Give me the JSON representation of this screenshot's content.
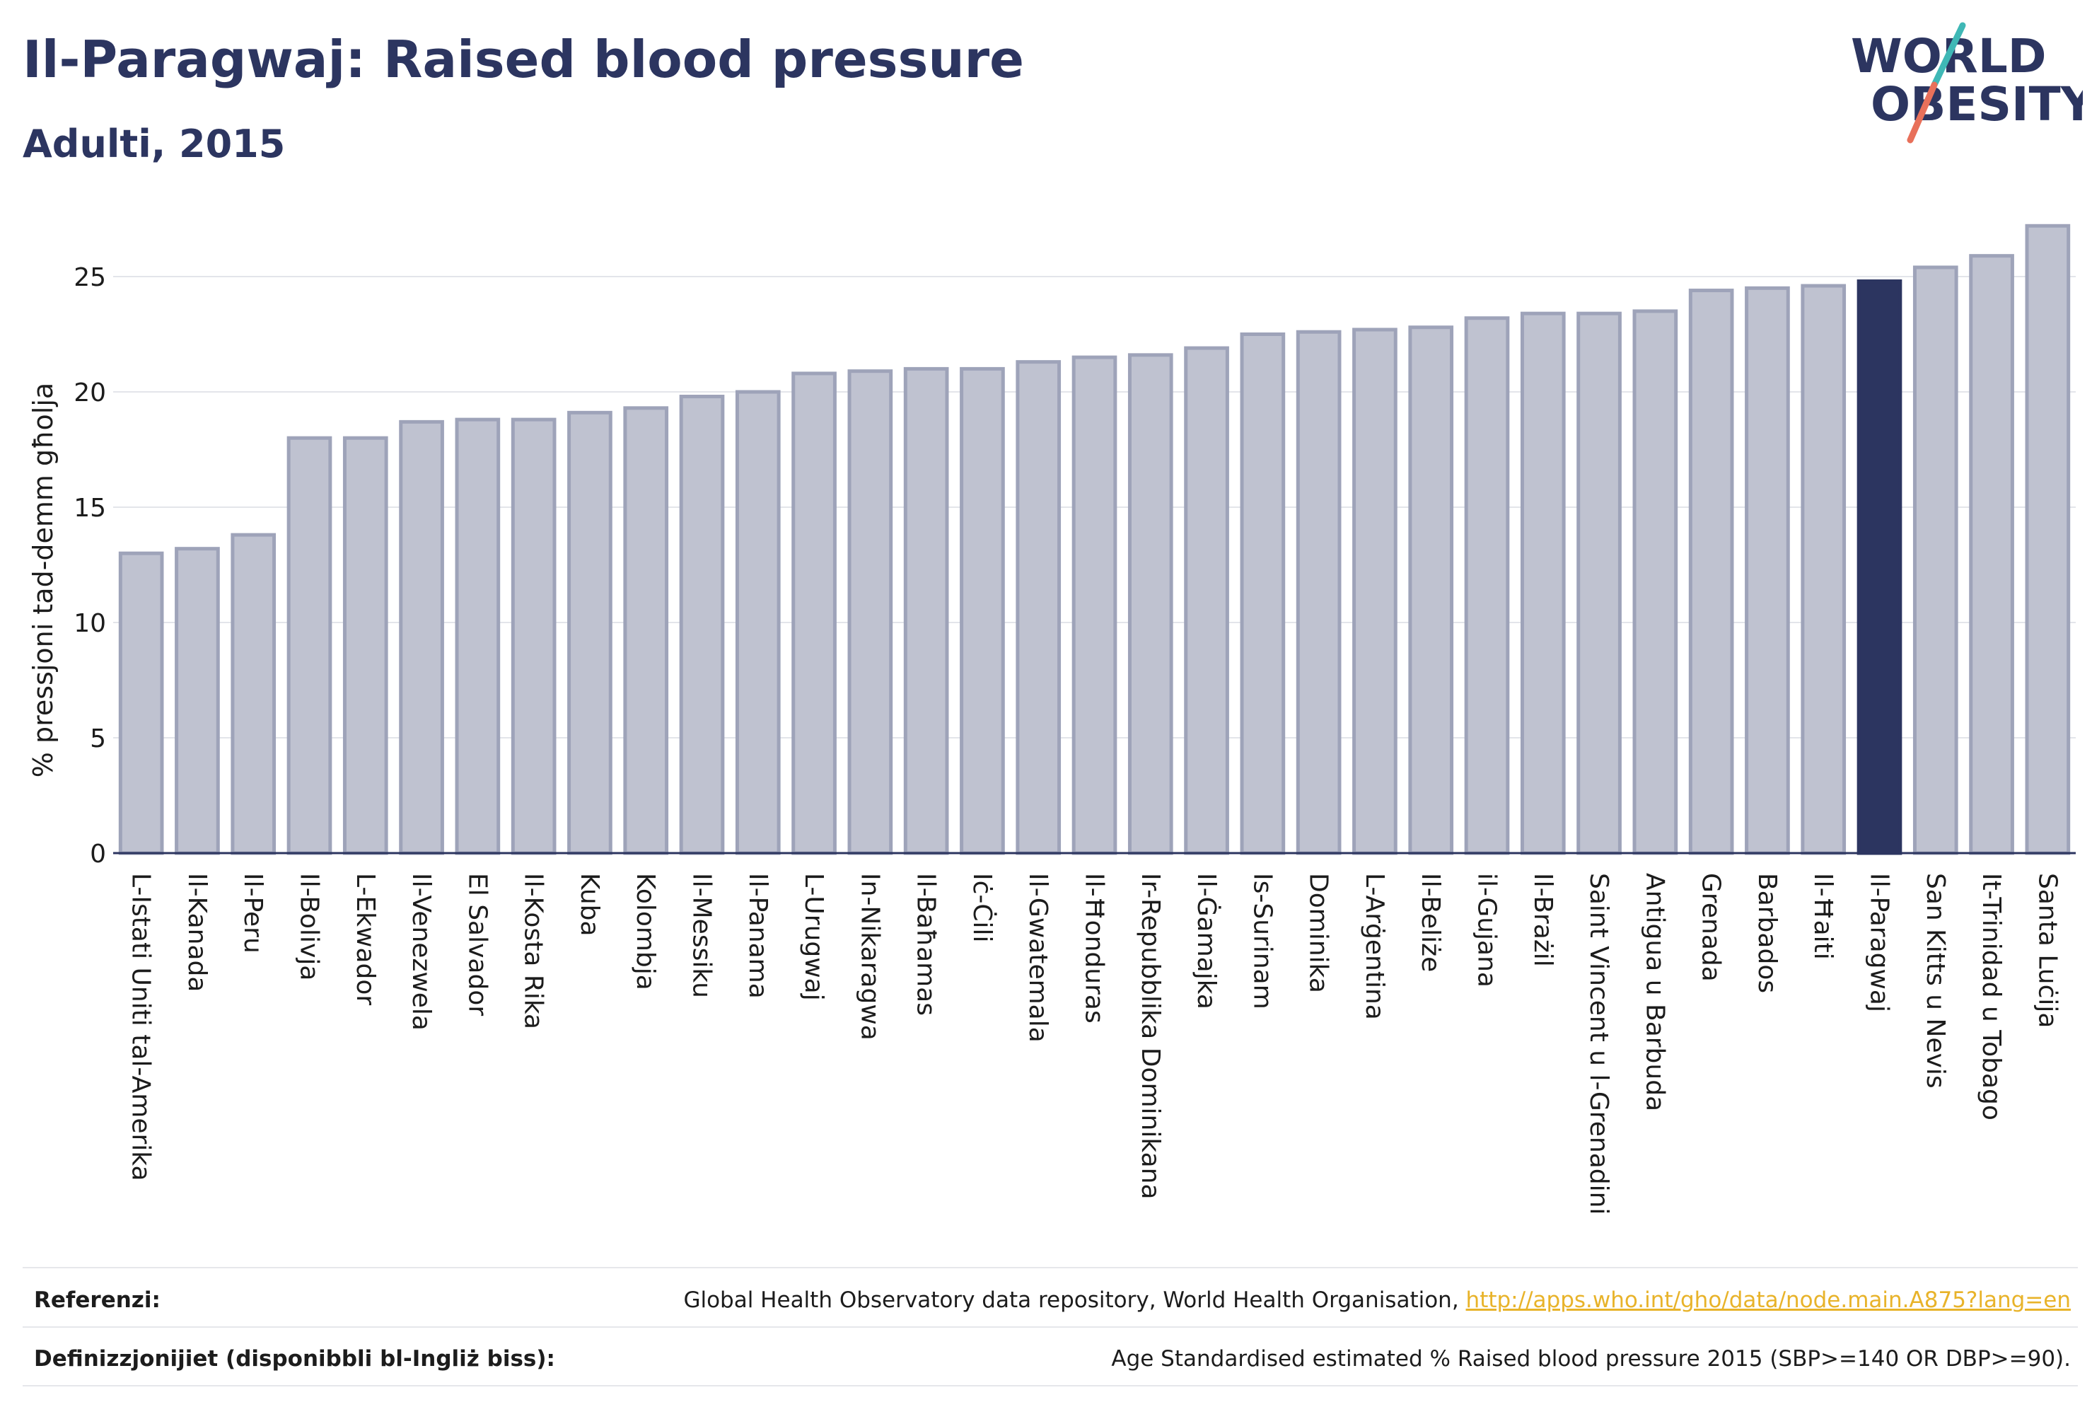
{
  "header": {
    "title": "Il-Paragwaj: Raised blood pressure",
    "subtitle": "Adulti, 2015"
  },
  "logo": {
    "line1": "WORLD",
    "line2": "OBESITY"
  },
  "colors": {
    "bar_fill": "#bfc2d0",
    "bar_stroke": "#9ea3b9",
    "highlight_fill": "#2c3560",
    "text": "#2c3560",
    "link": "#e8b32a",
    "logo_teal": "#3fb8b6",
    "logo_coral": "#e8705a"
  },
  "chart_data": {
    "type": "bar",
    "title": "Il-Paragwaj: Raised blood pressure",
    "subtitle": "Adulti, 2015",
    "xlabel": "",
    "ylabel": "% pressjoni tad-demm għolja",
    "ylim": [
      0,
      27.5
    ],
    "yticks": [
      0,
      5,
      10,
      15,
      20,
      25
    ],
    "grid": true,
    "highlight": "Il-Paragwaj",
    "categories": [
      "L-Istati Uniti tal-Amerika",
      "Il-Kanada",
      "Il-Peru",
      "Il-Bolivja",
      "L-Ekwador",
      "Il-Venezwela",
      "El Salvador",
      "Il-Kosta Rika",
      "Kuba",
      "Kolombja",
      "Il-Messiku",
      "Il-Panama",
      "L-Urugwaj",
      "In-Nikaragwa",
      "Il-Baħamas",
      "Iċ-Ċili",
      "Il-Gwatemala",
      "Il-Ħonduras",
      "Ir-Repubblika Dominikana",
      "Il-Ġamajka",
      "Is-Surinam",
      "Dominika",
      "L-Arġentina",
      "Il-Beliże",
      "il-Gujana",
      "Il-Brażil",
      "Saint Vincent u l-Grenadini",
      "Antigua u Barbuda",
      "Grenada",
      "Barbados",
      "Il-Ħaiti",
      "Il-Paragwaj",
      "San Kitts u Nevis",
      "It-Trinidad u Tobago",
      "Santa Luċija"
    ],
    "values": [
      13.0,
      13.2,
      13.8,
      18.0,
      18.0,
      18.7,
      18.8,
      18.8,
      19.1,
      19.3,
      19.8,
      20.0,
      20.8,
      20.9,
      21.0,
      21.0,
      21.3,
      21.5,
      21.6,
      21.9,
      22.5,
      22.6,
      22.7,
      22.8,
      23.2,
      23.4,
      23.4,
      23.5,
      24.4,
      24.5,
      24.6,
      24.8,
      25.4,
      25.9,
      27.2
    ]
  },
  "footer": {
    "references_label": "Referenzi:",
    "references_text": "Global Health Observatory data repository, World Health Organisation, ",
    "references_link": "http://apps.who.int/gho/data/node.main.A875?lang=en",
    "definitions_label": "Definizzjonijiet (disponibbli bl-Ingliż biss):",
    "definitions_text": "Age Standardised estimated % Raised blood pressure 2015 (SBP>=140 OR DBP>=90)."
  }
}
